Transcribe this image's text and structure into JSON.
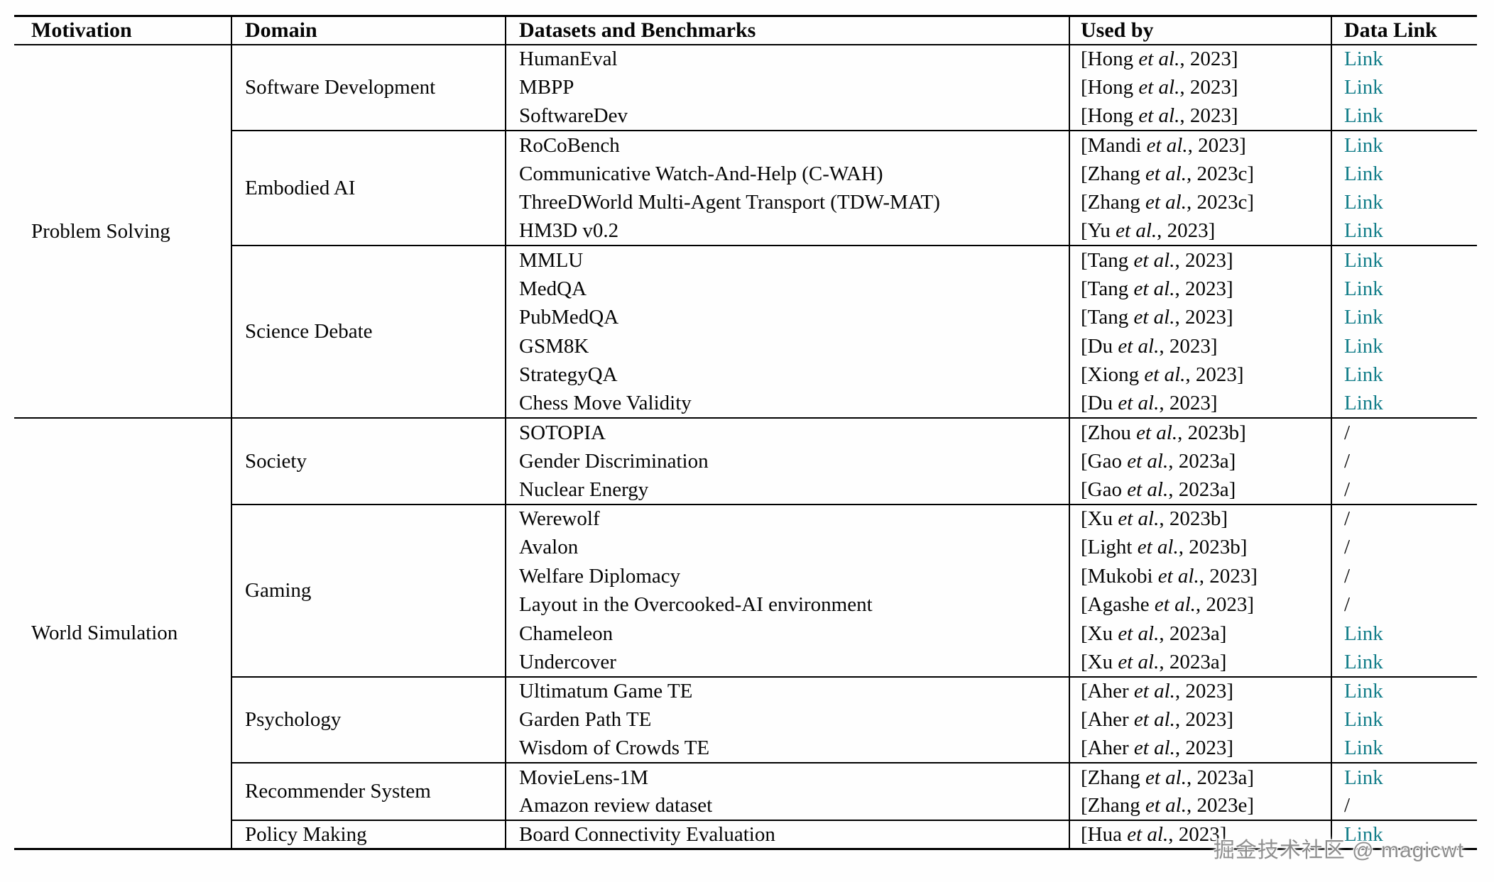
{
  "page": {
    "watermark": "掘金技术社区 @ magicwt"
  },
  "table": {
    "headers": [
      {
        "label": "Motivation"
      },
      {
        "label": "Domain"
      },
      {
        "label": "Datasets and Benchmarks"
      },
      {
        "label": "Used by"
      },
      {
        "label": "Data Link"
      }
    ],
    "citation_format": {
      "open": "[",
      "etal": "et al.",
      "sep": ", ",
      "close": "]"
    },
    "link_label": "Link",
    "no_link_label": "/",
    "colors": {
      "link": "#127d89",
      "text": "#060606",
      "border": "#000000"
    },
    "groups": [
      {
        "motivation": "Problem Solving",
        "domains": [
          {
            "name": "Software Development",
            "rows": [
              {
                "dataset": "HumanEval",
                "author": "Hong",
                "year": "2023",
                "link": "Link"
              },
              {
                "dataset": "MBPP",
                "author": "Hong",
                "year": "2023",
                "link": "Link"
              },
              {
                "dataset": "SoftwareDev",
                "author": "Hong",
                "year": "2023",
                "link": "Link"
              }
            ]
          },
          {
            "name": "Embodied AI",
            "rows": [
              {
                "dataset": "RoCoBench",
                "author": "Mandi",
                "year": "2023",
                "link": "Link"
              },
              {
                "dataset": "Communicative Watch-And-Help (C-WAH)",
                "author": "Zhang",
                "year": "2023c",
                "link": "Link"
              },
              {
                "dataset": "ThreeDWorld Multi-Agent Transport (TDW-MAT)",
                "author": "Zhang",
                "year": "2023c",
                "link": "Link"
              },
              {
                "dataset": "HM3D v0.2",
                "author": "Yu",
                "year": "2023",
                "link": "Link"
              }
            ]
          },
          {
            "name": "Science Debate",
            "rows": [
              {
                "dataset": "MMLU",
                "author": "Tang",
                "year": "2023",
                "link": "Link"
              },
              {
                "dataset": "MedQA",
                "author": "Tang",
                "year": "2023",
                "link": "Link"
              },
              {
                "dataset": "PubMedQA",
                "author": "Tang",
                "year": "2023",
                "link": "Link"
              },
              {
                "dataset": "GSM8K",
                "author": "Du",
                "year": "2023",
                "link": "Link"
              },
              {
                "dataset": "StrategyQA",
                "author": "Xiong",
                "year": "2023",
                "link": "Link"
              },
              {
                "dataset": "Chess Move Validity",
                "author": "Du",
                "year": "2023",
                "link": "Link"
              }
            ]
          }
        ]
      },
      {
        "motivation": "World Simulation",
        "domains": [
          {
            "name": "Society",
            "rows": [
              {
                "dataset": "SOTOPIA",
                "author": "Zhou",
                "year": "2023b",
                "link": "/"
              },
              {
                "dataset": "Gender Discrimination",
                "author": "Gao",
                "year": "2023a",
                "link": "/"
              },
              {
                "dataset": "Nuclear Energy",
                "author": "Gao",
                "year": "2023a",
                "link": "/"
              }
            ]
          },
          {
            "name": "Gaming",
            "rows": [
              {
                "dataset": "Werewolf",
                "author": "Xu",
                "year": "2023b",
                "link": "/"
              },
              {
                "dataset": "Avalon",
                "author": "Light",
                "year": "2023b",
                "link": "/"
              },
              {
                "dataset": "Welfare Diplomacy",
                "author": "Mukobi",
                "year": "2023",
                "link": "/"
              },
              {
                "dataset": "Layout in the Overcooked-AI environment",
                "author": "Agashe",
                "year": "2023",
                "link": "/"
              },
              {
                "dataset": "Chameleon",
                "author": "Xu",
                "year": "2023a",
                "link": "Link"
              },
              {
                "dataset": "Undercover",
                "author": "Xu",
                "year": "2023a",
                "link": "Link"
              }
            ]
          },
          {
            "name": "Psychology",
            "rows": [
              {
                "dataset": "Ultimatum Game TE",
                "author": "Aher",
                "year": "2023",
                "link": "Link"
              },
              {
                "dataset": "Garden Path TE",
                "author": "Aher",
                "year": "2023",
                "link": "Link"
              },
              {
                "dataset": "Wisdom of Crowds TE",
                "author": "Aher",
                "year": "2023",
                "link": "Link"
              }
            ]
          },
          {
            "name": "Recommender System",
            "rows": [
              {
                "dataset": "MovieLens-1M",
                "author": "Zhang",
                "year": "2023a",
                "link": "Link"
              },
              {
                "dataset": "Amazon review dataset",
                "author": "Zhang",
                "year": "2023e",
                "link": "/"
              }
            ]
          },
          {
            "name": "Policy Making",
            "rows": [
              {
                "dataset": "Board Connectivity Evaluation",
                "author": "Hua",
                "year": "2023",
                "link": "Link"
              }
            ]
          }
        ]
      }
    ]
  }
}
